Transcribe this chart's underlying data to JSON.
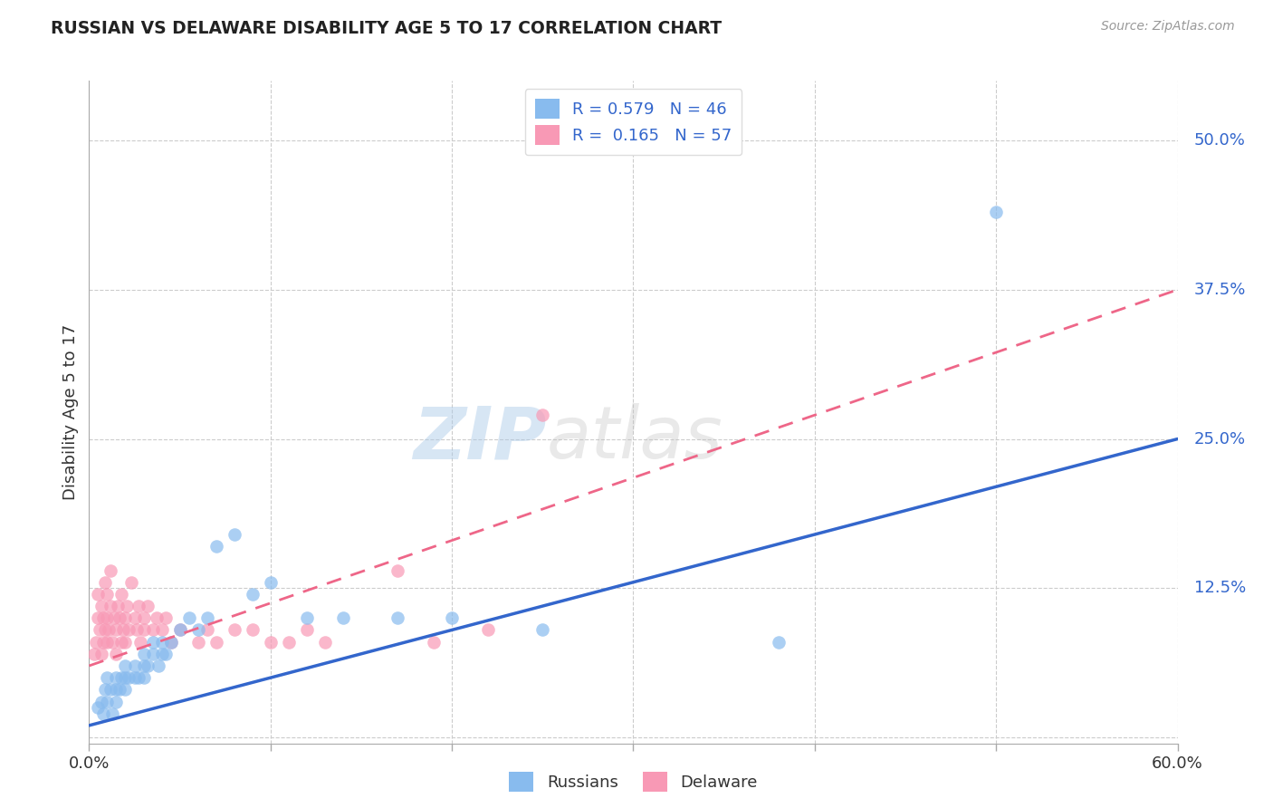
{
  "title": "RUSSIAN VS DELAWARE DISABILITY AGE 5 TO 17 CORRELATION CHART",
  "source": "Source: ZipAtlas.com",
  "ylabel": "Disability Age 5 to 17",
  "xlim": [
    0.0,
    0.6
  ],
  "ylim": [
    -0.005,
    0.55
  ],
  "yticks": [
    0.0,
    0.125,
    0.25,
    0.375,
    0.5
  ],
  "ytick_labels": [
    "",
    "12.5%",
    "25.0%",
    "37.5%",
    "50.0%"
  ],
  "watermark_part1": "ZIP",
  "watermark_part2": "atlas",
  "legend_R_russian": "0.579",
  "legend_N_russian": "46",
  "legend_R_delaware": "0.165",
  "legend_N_delaware": "57",
  "blue_color": "#88BBEE",
  "pink_color": "#F899B5",
  "blue_line_color": "#3366CC",
  "pink_line_color": "#EE6688",
  "background_color": "#FFFFFF",
  "grid_color": "#CCCCCC",
  "title_color": "#222222",
  "source_color": "#999999",
  "tick_label_color": "#333333",
  "russians_x": [
    0.005,
    0.007,
    0.008,
    0.009,
    0.01,
    0.01,
    0.012,
    0.013,
    0.015,
    0.015,
    0.015,
    0.017,
    0.018,
    0.02,
    0.02,
    0.02,
    0.022,
    0.025,
    0.025,
    0.027,
    0.03,
    0.03,
    0.03,
    0.032,
    0.035,
    0.035,
    0.038,
    0.04,
    0.04,
    0.042,
    0.045,
    0.05,
    0.055,
    0.06,
    0.065,
    0.07,
    0.08,
    0.09,
    0.1,
    0.12,
    0.14,
    0.17,
    0.2,
    0.25,
    0.38,
    0.5
  ],
  "russians_y": [
    0.025,
    0.03,
    0.02,
    0.04,
    0.03,
    0.05,
    0.04,
    0.02,
    0.04,
    0.05,
    0.03,
    0.04,
    0.05,
    0.04,
    0.05,
    0.06,
    0.05,
    0.05,
    0.06,
    0.05,
    0.06,
    0.05,
    0.07,
    0.06,
    0.07,
    0.08,
    0.06,
    0.07,
    0.08,
    0.07,
    0.08,
    0.09,
    0.1,
    0.09,
    0.1,
    0.16,
    0.17,
    0.12,
    0.13,
    0.1,
    0.1,
    0.1,
    0.1,
    0.09,
    0.08,
    0.44
  ],
  "delaware_x": [
    0.003,
    0.004,
    0.005,
    0.005,
    0.006,
    0.007,
    0.007,
    0.008,
    0.008,
    0.009,
    0.009,
    0.01,
    0.01,
    0.01,
    0.011,
    0.012,
    0.012,
    0.013,
    0.014,
    0.015,
    0.015,
    0.016,
    0.017,
    0.018,
    0.018,
    0.019,
    0.02,
    0.02,
    0.021,
    0.022,
    0.023,
    0.025,
    0.026,
    0.027,
    0.028,
    0.03,
    0.03,
    0.032,
    0.035,
    0.037,
    0.04,
    0.042,
    0.045,
    0.05,
    0.06,
    0.065,
    0.07,
    0.08,
    0.09,
    0.1,
    0.11,
    0.12,
    0.13,
    0.17,
    0.19,
    0.22,
    0.25
  ],
  "delaware_y": [
    0.07,
    0.08,
    0.1,
    0.12,
    0.09,
    0.07,
    0.11,
    0.08,
    0.1,
    0.09,
    0.13,
    0.08,
    0.1,
    0.12,
    0.09,
    0.11,
    0.14,
    0.08,
    0.1,
    0.07,
    0.09,
    0.11,
    0.1,
    0.08,
    0.12,
    0.09,
    0.08,
    0.1,
    0.11,
    0.09,
    0.13,
    0.1,
    0.09,
    0.11,
    0.08,
    0.09,
    0.1,
    0.11,
    0.09,
    0.1,
    0.09,
    0.1,
    0.08,
    0.09,
    0.08,
    0.09,
    0.08,
    0.09,
    0.09,
    0.08,
    0.08,
    0.09,
    0.08,
    0.14,
    0.08,
    0.09,
    0.27
  ],
  "russian_line_x": [
    0.0,
    0.6
  ],
  "russian_line_y": [
    0.01,
    0.25
  ],
  "delaware_line_x": [
    0.0,
    0.6
  ],
  "delaware_line_y": [
    0.06,
    0.375
  ]
}
